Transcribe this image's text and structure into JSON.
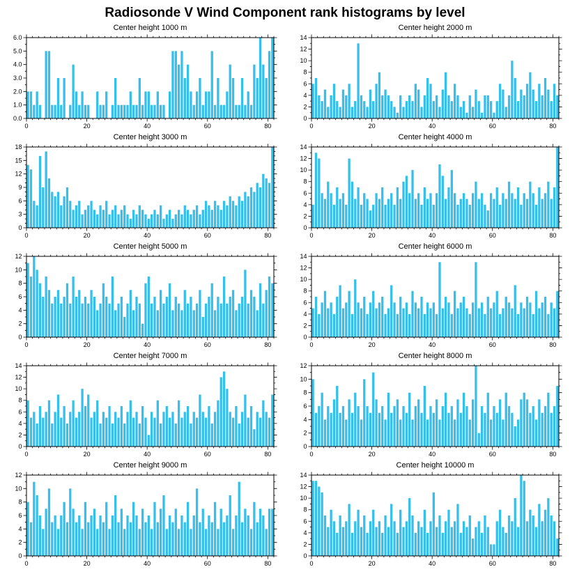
{
  "page_title": "Radiosonde V Wind Component rank histograms by level",
  "colors": {
    "bar": "#35BFEC",
    "axis": "#000000",
    "text": "#000000",
    "background": "#FFFFFF"
  },
  "chart_data": [
    {
      "type": "bar",
      "title": "Center height 1000 m",
      "xlabel": "",
      "ylabel": "",
      "xlim": [
        0,
        82
      ],
      "ylim": [
        0,
        6
      ],
      "xticks": [
        0,
        20,
        40,
        60,
        80
      ],
      "xminor": 2,
      "yticks": [
        0,
        1,
        2,
        3,
        4,
        5,
        6
      ],
      "yminor": 0.5,
      "ytick_labels": [
        "0.0",
        "1.0",
        "2.0",
        "3.0",
        "4.0",
        "5.0",
        "6.0"
      ],
      "values": [
        2,
        2,
        1,
        2,
        1,
        0,
        5,
        5,
        1,
        1,
        3,
        1,
        3,
        0,
        1,
        4,
        2,
        1,
        2,
        1,
        1,
        0,
        0,
        2,
        1,
        1,
        2,
        0,
        1,
        3,
        1,
        1,
        1,
        1,
        2,
        1,
        1,
        3,
        1,
        2,
        2,
        1,
        1,
        2,
        1,
        1,
        0,
        2,
        5,
        5,
        4,
        5,
        3,
        4,
        2,
        1,
        2,
        3,
        1,
        2,
        2,
        5,
        1,
        3,
        1,
        1,
        2,
        4,
        3,
        1,
        1,
        3,
        1,
        2,
        1,
        4,
        3,
        6,
        4,
        3,
        5,
        6
      ]
    },
    {
      "type": "bar",
      "title": "Center height 2000 m",
      "xlabel": "",
      "ylabel": "",
      "xlim": [
        0,
        82
      ],
      "ylim": [
        0,
        14
      ],
      "xticks": [
        0,
        20,
        40,
        60,
        80
      ],
      "xminor": 2,
      "yticks": [
        0,
        2,
        4,
        6,
        8,
        10,
        12,
        14
      ],
      "yminor": 1,
      "ytick_labels": [
        "0",
        "2",
        "4",
        "6",
        "8",
        "10",
        "12",
        "14"
      ],
      "values": [
        6,
        7,
        4,
        3,
        5,
        2,
        4,
        6,
        3,
        2,
        5,
        4,
        6,
        2,
        3,
        13,
        4,
        3,
        2,
        5,
        3,
        6,
        8,
        4,
        5,
        4,
        3,
        2,
        1,
        4,
        2,
        3,
        4,
        3,
        6,
        5,
        2,
        4,
        7,
        6,
        3,
        4,
        2,
        5,
        8,
        4,
        3,
        6,
        4,
        2,
        3,
        1,
        4,
        2,
        5,
        3,
        1,
        4,
        4,
        3,
        1,
        3,
        6,
        5,
        2,
        4,
        10,
        7,
        3,
        5,
        4,
        6,
        8,
        5,
        3,
        6,
        4,
        7,
        5,
        3,
        6,
        4
      ]
    },
    {
      "type": "bar",
      "title": "Center height 3000 m",
      "xlabel": "",
      "ylabel": "",
      "xlim": [
        0,
        82
      ],
      "ylim": [
        0,
        18
      ],
      "xticks": [
        0,
        20,
        40,
        60,
        80
      ],
      "xminor": 2,
      "yticks": [
        0,
        3,
        6,
        9,
        12,
        15,
        18
      ],
      "yminor": 1,
      "ytick_labels": [
        "0",
        "3",
        "6",
        "9",
        "12",
        "15",
        "18"
      ],
      "values": [
        14,
        13,
        6,
        5,
        16,
        9,
        17,
        11,
        8,
        7,
        8,
        5,
        7,
        9,
        6,
        4,
        5,
        6,
        3,
        4,
        5,
        6,
        4,
        3,
        5,
        4,
        6,
        3,
        4,
        5,
        3,
        4,
        5,
        3,
        2,
        4,
        3,
        5,
        4,
        3,
        2,
        3,
        4,
        3,
        5,
        2,
        3,
        4,
        2,
        3,
        4,
        3,
        5,
        4,
        3,
        4,
        5,
        3,
        4,
        6,
        5,
        4,
        6,
        5,
        4,
        6,
        5,
        7,
        6,
        5,
        7,
        6,
        8,
        7,
        9,
        8,
        10,
        9,
        12,
        11,
        10,
        18
      ]
    },
    {
      "type": "bar",
      "title": "Center height 4000 m",
      "xlabel": "",
      "ylabel": "",
      "xlim": [
        0,
        82
      ],
      "ylim": [
        0,
        14
      ],
      "xticks": [
        0,
        20,
        40,
        60,
        80
      ],
      "xminor": 2,
      "yticks": [
        0,
        2,
        4,
        6,
        8,
        10,
        12,
        14
      ],
      "yminor": 1,
      "ytick_labels": [
        "0",
        "2",
        "4",
        "6",
        "8",
        "10",
        "12",
        "14"
      ],
      "values": [
        4,
        13,
        12,
        6,
        5,
        8,
        6,
        4,
        7,
        5,
        6,
        4,
        12,
        8,
        5,
        7,
        4,
        6,
        5,
        3,
        4,
        6,
        5,
        7,
        4,
        5,
        6,
        4,
        7,
        5,
        8,
        9,
        6,
        10,
        5,
        6,
        4,
        7,
        5,
        6,
        4,
        6,
        11,
        9,
        5,
        7,
        10,
        6,
        4,
        5,
        6,
        5,
        4,
        6,
        8,
        5,
        6,
        4,
        3,
        6,
        5,
        7,
        4,
        6,
        5,
        8,
        6,
        5,
        7,
        4,
        6,
        5,
        8,
        6,
        4,
        7,
        5,
        6,
        8,
        5,
        7,
        14
      ]
    },
    {
      "type": "bar",
      "title": "Center height 5000 m",
      "xlabel": "",
      "ylabel": "",
      "xlim": [
        0,
        82
      ],
      "ylim": [
        0,
        12
      ],
      "xticks": [
        0,
        20,
        40,
        60,
        80
      ],
      "xminor": 2,
      "yticks": [
        0,
        2,
        4,
        6,
        8,
        10,
        12
      ],
      "yminor": 1,
      "ytick_labels": [
        "0",
        "2",
        "4",
        "6",
        "8",
        "10",
        "12"
      ],
      "values": [
        11,
        9,
        12,
        10,
        8,
        6,
        9,
        7,
        5,
        6,
        7,
        5,
        6,
        8,
        5,
        9,
        6,
        7,
        5,
        6,
        5,
        7,
        6,
        4,
        5,
        8,
        6,
        5,
        9,
        4,
        5,
        6,
        3,
        5,
        7,
        4,
        6,
        5,
        2,
        8,
        9,
        5,
        6,
        4,
        7,
        5,
        6,
        8,
        4,
        6,
        5,
        4,
        7,
        5,
        6,
        4,
        5,
        7,
        3,
        5,
        6,
        8,
        4,
        6,
        5,
        9,
        5,
        6,
        7,
        4,
        5,
        6,
        10,
        5,
        7,
        6,
        4,
        8,
        5,
        7,
        9,
        8
      ]
    },
    {
      "type": "bar",
      "title": "Center height 6000 m",
      "xlabel": "",
      "ylabel": "",
      "xlim": [
        0,
        82
      ],
      "ylim": [
        0,
        14
      ],
      "xticks": [
        0,
        20,
        40,
        60,
        80
      ],
      "xminor": 2,
      "yticks": [
        0,
        2,
        4,
        6,
        8,
        10,
        12,
        14
      ],
      "yminor": 1,
      "ytick_labels": [
        "0",
        "2",
        "4",
        "6",
        "8",
        "10",
        "12",
        "14"
      ],
      "values": [
        5,
        7,
        4,
        6,
        8,
        5,
        6,
        4,
        7,
        9,
        5,
        6,
        8,
        4,
        10,
        6,
        5,
        7,
        4,
        6,
        8,
        5,
        6,
        7,
        4,
        5,
        9,
        6,
        4,
        7,
        5,
        6,
        4,
        8,
        6,
        5,
        7,
        4,
        6,
        5,
        6,
        4,
        13,
        5,
        7,
        6,
        4,
        8,
        5,
        6,
        7,
        5,
        4,
        6,
        13,
        5,
        6,
        4,
        7,
        5,
        6,
        8,
        4,
        5,
        7,
        6,
        5,
        9,
        4,
        6,
        5,
        7,
        6,
        4,
        8,
        5,
        6,
        7,
        4,
        6,
        5,
        8
      ]
    },
    {
      "type": "bar",
      "title": "Center height 7000 m",
      "xlabel": "",
      "ylabel": "",
      "xlim": [
        0,
        82
      ],
      "ylim": [
        0,
        14
      ],
      "xticks": [
        0,
        20,
        40,
        60,
        80
      ],
      "xminor": 2,
      "yticks": [
        0,
        2,
        4,
        6,
        8,
        10,
        12,
        14
      ],
      "yminor": 1,
      "ytick_labels": [
        "0",
        "2",
        "4",
        "6",
        "8",
        "10",
        "12",
        "14"
      ],
      "values": [
        8,
        5,
        6,
        4,
        7,
        5,
        6,
        8,
        4,
        6,
        9,
        5,
        7,
        4,
        6,
        8,
        5,
        6,
        10,
        7,
        9,
        5,
        6,
        8,
        4,
        6,
        5,
        7,
        4,
        6,
        5,
        7,
        4,
        6,
        8,
        5,
        6,
        4,
        7,
        5,
        2,
        6,
        5,
        8,
        4,
        6,
        7,
        5,
        6,
        4,
        8,
        5,
        6,
        7,
        4,
        6,
        5,
        9,
        6,
        5,
        7,
        4,
        6,
        8,
        12,
        13,
        10,
        6,
        5,
        7,
        4,
        6,
        9,
        5,
        7,
        3,
        6,
        5,
        8,
        6,
        5,
        9
      ]
    },
    {
      "type": "bar",
      "title": "Center height 8000 m",
      "xlabel": "",
      "ylabel": "",
      "xlim": [
        0,
        82
      ],
      "ylim": [
        0,
        12
      ],
      "xticks": [
        0,
        20,
        40,
        60,
        80
      ],
      "xminor": 2,
      "yticks": [
        0,
        2,
        4,
        6,
        8,
        10,
        12
      ],
      "yminor": 1,
      "ytick_labels": [
        "0",
        "2",
        "4",
        "6",
        "8",
        "10",
        "12"
      ],
      "values": [
        10,
        5,
        6,
        8,
        4,
        6,
        5,
        7,
        9,
        5,
        6,
        4,
        7,
        5,
        8,
        6,
        4,
        10,
        6,
        5,
        11,
        7,
        5,
        6,
        4,
        8,
        5,
        6,
        7,
        4,
        6,
        5,
        8,
        4,
        6,
        7,
        5,
        9,
        4,
        6,
        5,
        7,
        4,
        6,
        8,
        5,
        6,
        4,
        7,
        5,
        8,
        6,
        4,
        7,
        12,
        2,
        6,
        5,
        8,
        4,
        6,
        5,
        7,
        4,
        8,
        6,
        5,
        3,
        4,
        7,
        8,
        7,
        5,
        6,
        4,
        7,
        5,
        6,
        8,
        5,
        6,
        9
      ]
    },
    {
      "type": "bar",
      "title": "Center height 9000 m",
      "xlabel": "",
      "ylabel": "",
      "xlim": [
        0,
        82
      ],
      "ylim": [
        0,
        12
      ],
      "xticks": [
        0,
        20,
        40,
        60,
        80
      ],
      "xminor": 2,
      "yticks": [
        0,
        2,
        4,
        6,
        8,
        10,
        12
      ],
      "yminor": 1,
      "ytick_labels": [
        "0",
        "2",
        "4",
        "6",
        "8",
        "10",
        "12"
      ],
      "values": [
        8,
        5,
        11,
        9,
        6,
        4,
        7,
        10,
        5,
        6,
        4,
        6,
        8,
        5,
        10,
        7,
        5,
        6,
        4,
        8,
        5,
        6,
        7,
        4,
        6,
        5,
        8,
        4,
        6,
        9,
        5,
        7,
        4,
        6,
        5,
        8,
        6,
        4,
        7,
        5,
        6,
        4,
        8,
        5,
        7,
        9,
        4,
        6,
        5,
        7,
        4,
        6,
        5,
        8,
        4,
        6,
        10,
        5,
        7,
        4,
        6,
        5,
        8,
        4,
        7,
        5,
        6,
        9,
        4,
        6,
        11,
        5,
        7,
        6,
        4,
        8,
        5,
        7,
        6,
        4,
        7,
        7
      ]
    },
    {
      "type": "bar",
      "title": "Center height 10000 m",
      "xlabel": "",
      "ylabel": "",
      "xlim": [
        0,
        82
      ],
      "ylim": [
        0,
        14
      ],
      "xticks": [
        0,
        20,
        40,
        60,
        80
      ],
      "xminor": 2,
      "yticks": [
        0,
        2,
        4,
        6,
        8,
        10,
        12,
        14
      ],
      "yminor": 1,
      "ytick_labels": [
        "0",
        "2",
        "4",
        "6",
        "8",
        "10",
        "12",
        "14"
      ],
      "values": [
        13,
        13,
        12,
        11,
        7,
        5,
        8,
        6,
        4,
        7,
        5,
        6,
        9,
        4,
        6,
        8,
        5,
        7,
        4,
        6,
        8,
        5,
        6,
        4,
        7,
        5,
        9,
        6,
        4,
        8,
        5,
        6,
        10,
        7,
        4,
        6,
        5,
        8,
        4,
        6,
        11,
        5,
        7,
        4,
        6,
        8,
        5,
        6,
        9,
        4,
        6,
        5,
        7,
        3,
        5,
        6,
        4,
        7,
        5,
        2,
        2,
        6,
        8,
        5,
        4,
        7,
        6,
        10,
        5,
        14,
        13,
        6,
        8,
        7,
        5,
        9,
        6,
        8,
        10,
        7,
        6,
        3
      ]
    }
  ]
}
